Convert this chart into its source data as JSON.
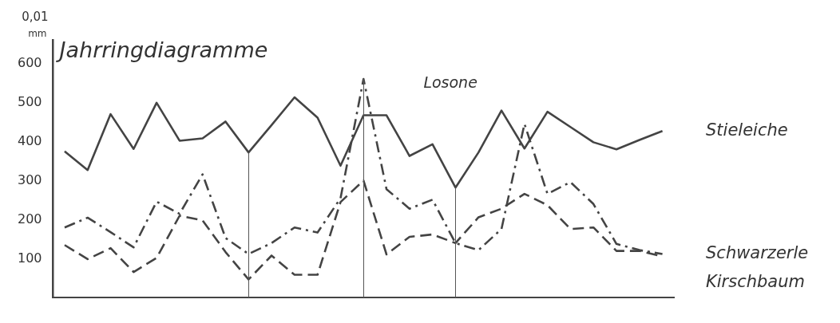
{
  "chart_data": {
    "type": "line",
    "title": "Jahrringdiagramme",
    "subtitle": "Losone",
    "ylabel": "0,01 mm",
    "categories": [
      null,
      null,
      null,
      null,
      null,
      null,
      null,
      null,
      null,
      null,
      null,
      null,
      null,
      null,
      null,
      null,
      null,
      null,
      null,
      null,
      null,
      null,
      null,
      null,
      null,
      null,
      null
    ],
    "ylim": [
      0,
      660
    ],
    "yticks": [
      100,
      200,
      300,
      400,
      500,
      600
    ],
    "tick_labels": "y",
    "grid": false,
    "legend": false,
    "marker": "none",
    "series": [
      {
        "name": "Stieleiche",
        "color": "#444444",
        "line_style": "solid",
        "values": [
          375,
          327,
          470,
          381,
          499,
          402,
          408,
          451,
          372,
          442,
          513,
          461,
          338,
          467,
          467,
          363,
          393,
          282,
          372,
          479,
          382,
          476,
          437,
          398,
          380,
          404,
          427
        ]
      },
      {
        "name": "Schwarzerle",
        "color": "#444444",
        "line_style": "dashdot",
        "values": [
          180,
          205,
          168,
          129,
          246,
          215,
          316,
          153,
          112,
          140,
          180,
          167,
          255,
          560,
          278,
          228,
          251,
          140,
          122,
          176,
          445,
          266,
          296,
          240,
          138,
          122,
          112
        ]
      },
      {
        "name": "Kirschbaum",
        "color": "#444444",
        "line_style": "dashed",
        "values": [
          135,
          99,
          127,
          66,
          102,
          210,
          198,
          117,
          47,
          108,
          59,
          59,
          245,
          300,
          111,
          156,
          162,
          140,
          206,
          228,
          266,
          237,
          176,
          180,
          120,
          120,
          106
        ]
      }
    ]
  }
}
